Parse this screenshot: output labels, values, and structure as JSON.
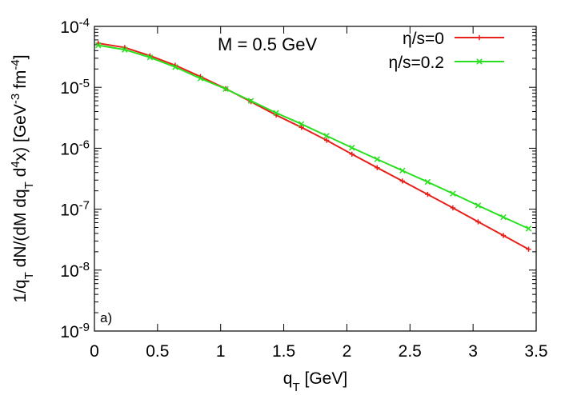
{
  "chart_data": {
    "type": "line",
    "title": "",
    "annotation": "M = 0.5 GeV",
    "panel_label": "a)",
    "xlabel": {
      "base": "q",
      "sub": "T",
      "rest": " [GeV]"
    },
    "ylabel": {
      "p1": "1/q",
      "s1": "T",
      "p2": " dN/(dM dq",
      "s2": "T",
      "p3": " d",
      "sup1": "4",
      "p4": "x) [GeV",
      "sup2": "-3",
      "p5": " fm",
      "sup3": "-4",
      "p6": "]"
    },
    "xlim": [
      0,
      3.5
    ],
    "ylim": [
      1e-09,
      0.0001
    ],
    "yscale": "log",
    "x_ticks": [
      0,
      0.5,
      1,
      1.5,
      2,
      2.5,
      3,
      3.5
    ],
    "x_tick_labels": [
      "0",
      "0.5",
      "1",
      "1.5",
      "2",
      "2.5",
      "3",
      "3.5"
    ],
    "y_ticks": [
      {
        "base": "10",
        "exp": "-9",
        "value": 1e-09
      },
      {
        "base": "10",
        "exp": "-8",
        "value": 1e-08
      },
      {
        "base": "10",
        "exp": "-7",
        "value": 1e-07
      },
      {
        "base": "10",
        "exp": "-6",
        "value": 1e-06
      },
      {
        "base": "10",
        "exp": "-5",
        "value": 1e-05
      },
      {
        "base": "10",
        "exp": "-4",
        "value": 0.0001
      }
    ],
    "legend_position": "top-right",
    "series": [
      {
        "name": "η/s=0",
        "color": "#e8201a",
        "marker": "plus",
        "x": [
          0.03,
          0.24,
          0.44,
          0.64,
          0.84,
          1.04,
          1.24,
          1.44,
          1.64,
          1.84,
          2.04,
          2.24,
          2.44,
          2.64,
          2.84,
          3.04,
          3.24,
          3.44
        ],
        "y": [
          5.3e-05,
          4.5e-05,
          3.3e-05,
          2.3e-05,
          1.5e-05,
          9.5e-06,
          5.8e-06,
          3.5e-06,
          2.2e-06,
          1.35e-06,
          8e-07,
          4.8e-07,
          2.9e-07,
          1.75e-07,
          1.05e-07,
          6.2e-08,
          3.7e-08,
          2.2e-08
        ]
      },
      {
        "name": "η/s=0.2",
        "color": "#29e01f",
        "marker": "cross",
        "x": [
          0.03,
          0.24,
          0.44,
          0.64,
          0.84,
          1.04,
          1.24,
          1.44,
          1.64,
          1.84,
          2.04,
          2.24,
          2.44,
          2.64,
          2.84,
          3.04,
          3.24,
          3.44
        ],
        "y": [
          4.9e-05,
          4.15e-05,
          3.1e-05,
          2.15e-05,
          1.4e-05,
          9.4e-06,
          6e-06,
          3.8e-06,
          2.5e-06,
          1.6e-06,
          1.02e-06,
          6.6e-07,
          4.3e-07,
          2.8e-07,
          1.8e-07,
          1.15e-07,
          7.4e-08,
          4.8e-08
        ]
      }
    ]
  }
}
